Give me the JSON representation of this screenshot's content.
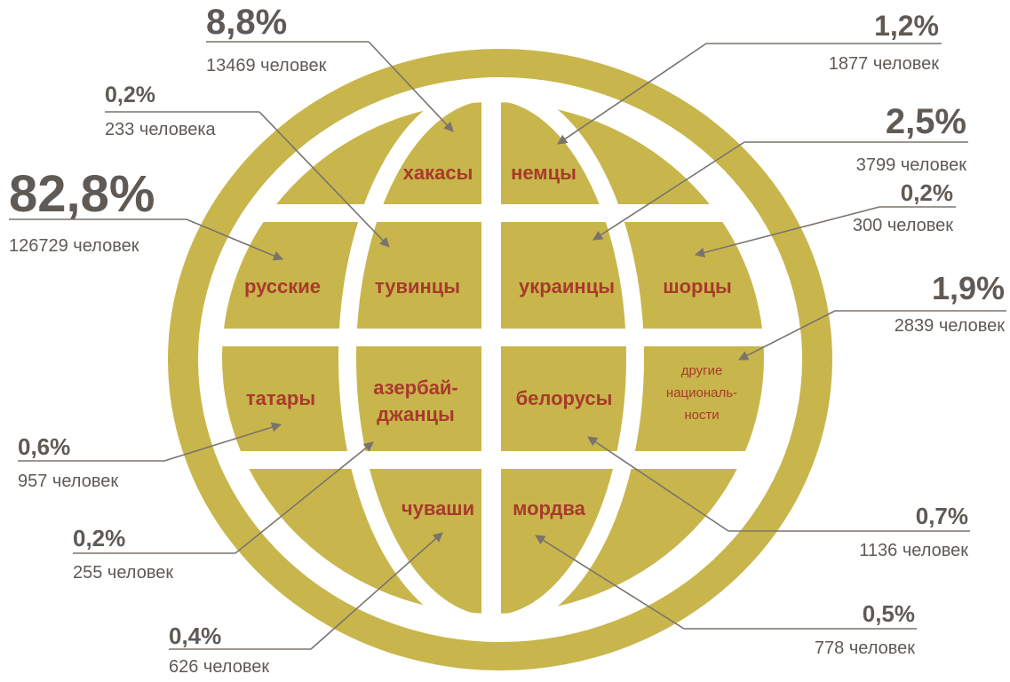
{
  "groups": [
    {
      "name_lines": [
        "хакасы"
      ],
      "percent": "8,8%",
      "count": "13469 человек"
    },
    {
      "name_lines": [
        "немцы"
      ],
      "percent": "1,2%",
      "count": "1877 человек"
    },
    {
      "name_lines": [
        "тувинцы"
      ],
      "percent": "0,2%",
      "count": "233 человека"
    },
    {
      "name_lines": [
        "украинцы"
      ],
      "percent": "2,5%",
      "count": "3799 человек"
    },
    {
      "name_lines": [
        "русские"
      ],
      "percent": "82,8%",
      "count": "126729 человек"
    },
    {
      "name_lines": [
        "шорцы"
      ],
      "percent": "0,2%",
      "count": "300 человек"
    },
    {
      "name_lines": [
        "другие",
        "националь-",
        "ности"
      ],
      "percent": "1,9%",
      "count": "2839 человек"
    },
    {
      "name_lines": [
        "татары"
      ],
      "percent": "0,6%",
      "count": "957 человек"
    },
    {
      "name_lines": [
        "белорусы"
      ],
      "percent": "0,7%",
      "count": "1136 человек"
    },
    {
      "name_lines": [
        "азербай-",
        "джанцы"
      ],
      "percent": "0,2%",
      "count": "255 человек"
    },
    {
      "name_lines": [
        "мордва"
      ],
      "percent": "0,5%",
      "count": "778 человек"
    },
    {
      "name_lines": [
        "чуваши"
      ],
      "percent": "0,4%",
      "count": "626 человек"
    }
  ]
}
